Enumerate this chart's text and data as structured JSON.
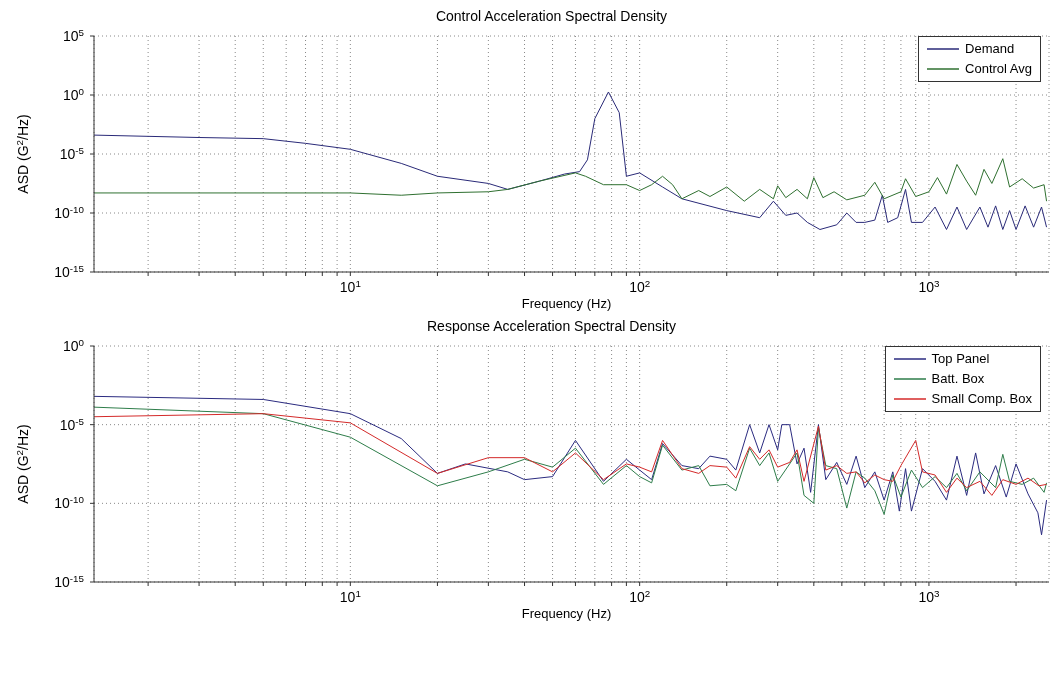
{
  "chart_data": [
    {
      "type": "line",
      "title": "Control Acceleration Spectral Density",
      "xlabel": "Frequency (Hz)",
      "ylabel": "ASD (G$^{2}$/Hz)",
      "log": "xy",
      "grid": true,
      "legend": "top right",
      "xlim": [
        1.3,
        2600
      ],
      "ylim": [
        1e-15,
        100000
      ],
      "xticks": [
        {
          "value": 2,
          "label": null
        },
        {
          "value": 3,
          "label": null
        },
        {
          "value": 4,
          "label": null
        },
        {
          "value": 5,
          "label": null
        },
        {
          "value": 6,
          "label": null
        },
        {
          "value": 7,
          "label": null
        },
        {
          "value": 8,
          "label": null
        },
        {
          "value": 9,
          "label": null
        },
        {
          "value": 10,
          "label": "10$^{1}$"
        },
        {
          "value": 20,
          "label": null
        },
        {
          "value": 30,
          "label": null
        },
        {
          "value": 40,
          "label": null
        },
        {
          "value": 50,
          "label": null
        },
        {
          "value": 60,
          "label": null
        },
        {
          "value": 70,
          "label": null
        },
        {
          "value": 80,
          "label": null
        },
        {
          "value": 90,
          "label": null
        },
        {
          "value": 100,
          "label": "10$^{2}$"
        },
        {
          "value": 200,
          "label": null
        },
        {
          "value": 300,
          "label": null
        },
        {
          "value": 400,
          "label": null
        },
        {
          "value": 500,
          "label": null
        },
        {
          "value": 600,
          "label": null
        },
        {
          "value": 700,
          "label": null
        },
        {
          "value": 800,
          "label": null
        },
        {
          "value": 900,
          "label": null
        },
        {
          "value": 1000,
          "label": "10$^{3}$"
        },
        {
          "value": 2000,
          "label": null
        }
      ],
      "yticks": [
        {
          "value": 1e-15,
          "label": "10$^{-15}$"
        },
        {
          "value": 1e-10,
          "label": "10$^{-10}$"
        },
        {
          "value": 1e-05,
          "label": "10$^{-5}$"
        },
        {
          "value": 1,
          "label": "10$^{0}$"
        },
        {
          "value": 100000,
          "label": "10$^{5}$"
        }
      ],
      "series": [
        {
          "name": "Demand",
          "color": "#2a2a78",
          "x": [
            1.3,
            3,
            5,
            7,
            10,
            15,
            20,
            30,
            35,
            45,
            55,
            62,
            66,
            70,
            78,
            85,
            90,
            100,
            120,
            140,
            200,
            260,
            290,
            320,
            350,
            380,
            420,
            480,
            520,
            560,
            600,
            650,
            690,
            720,
            780,
            830,
            870,
            950,
            1050,
            1150,
            1250,
            1350,
            1500,
            1600,
            1700,
            1800,
            1900,
            2000,
            2150,
            2300,
            2450,
            2550
          ],
          "values": [
            0.0004,
            0.00025,
            0.0002,
            8e-05,
            2.5e-05,
            1.6e-06,
            1.3e-07,
            3.2e-08,
            1e-08,
            5e-08,
            2e-07,
            3.2e-07,
            3.2e-06,
            0.01,
            1.8,
            0.032,
            1.3e-07,
            2.5e-07,
            1.6e-08,
            1.6e-09,
            1.6e-10,
            4e-11,
            1e-09,
            6.3e-11,
            1e-10,
            1.6e-11,
            4e-12,
            1e-11,
            1e-10,
            1.6e-11,
            1.6e-11,
            2.5e-11,
            3.2e-09,
            1.6e-11,
            4e-11,
            1e-08,
            1.6e-11,
            1.6e-11,
            3.2e-10,
            4e-12,
            3.2e-10,
            4e-12,
            3.2e-10,
            6.3e-12,
            4e-10,
            4e-12,
            1.6e-10,
            4e-12,
            4e-10,
            6.3e-12,
            3.2e-10,
            6.3e-12
          ]
        },
        {
          "name": "Control Avg",
          "color": "#2f7030",
          "x": [
            1.3,
            5,
            10,
            15,
            20,
            30,
            35,
            45,
            60,
            65,
            75,
            90,
            100,
            110,
            120,
            130,
            140,
            160,
            175,
            200,
            230,
            260,
            290,
            300,
            320,
            350,
            380,
            400,
            430,
            470,
            520,
            600,
            650,
            700,
            800,
            830,
            900,
            1000,
            1070,
            1150,
            1250,
            1350,
            1450,
            1550,
            1650,
            1800,
            1900,
            2100,
            2300,
            2500,
            2550
          ],
          "values": [
            5e-09,
            5e-09,
            5e-09,
            3.2e-09,
            5e-09,
            6.3e-09,
            1e-08,
            5e-08,
            2.5e-07,
            1.3e-07,
            2.5e-08,
            2.5e-08,
            8e-09,
            2.5e-08,
            1.3e-07,
            2.5e-08,
            1.6e-09,
            8e-09,
            2.5e-09,
            1.6e-08,
            1e-09,
            1e-08,
            1.6e-09,
            2e-08,
            2e-09,
            1e-08,
            1.6e-09,
            1e-07,
            2e-09,
            6.3e-09,
            1.3e-09,
            3.2e-09,
            4e-08,
            1.6e-09,
            6.3e-09,
            8e-08,
            2.5e-09,
            6.3e-09,
            1e-07,
            4e-09,
            1.3e-06,
            5e-08,
            3.2e-09,
            5e-07,
            3.2e-08,
            4e-06,
            1.6e-08,
            8e-08,
            1.3e-08,
            2.5e-08,
            1e-09
          ]
        }
      ]
    },
    {
      "type": "line",
      "title": "Response Acceleration Spectral Density",
      "xlabel": "Frequency (Hz)",
      "ylabel": "ASD (G$^{2}$/Hz)",
      "log": "xy",
      "grid": true,
      "legend": "top right",
      "xlim": [
        1.3,
        2600
      ],
      "ylim": [
        1e-15,
        1
      ],
      "xticks": [
        {
          "value": 2,
          "label": null
        },
        {
          "value": 3,
          "label": null
        },
        {
          "value": 4,
          "label": null
        },
        {
          "value": 5,
          "label": null
        },
        {
          "value": 6,
          "label": null
        },
        {
          "value": 7,
          "label": null
        },
        {
          "value": 8,
          "label": null
        },
        {
          "value": 9,
          "label": null
        },
        {
          "value": 10,
          "label": "10$^{1}$"
        },
        {
          "value": 20,
          "label": null
        },
        {
          "value": 30,
          "label": null
        },
        {
          "value": 40,
          "label": null
        },
        {
          "value": 50,
          "label": null
        },
        {
          "value": 60,
          "label": null
        },
        {
          "value": 70,
          "label": null
        },
        {
          "value": 80,
          "label": null
        },
        {
          "value": 90,
          "label": null
        },
        {
          "value": 100,
          "label": "10$^{2}$"
        },
        {
          "value": 200,
          "label": null
        },
        {
          "value": 300,
          "label": null
        },
        {
          "value": 400,
          "label": null
        },
        {
          "value": 500,
          "label": null
        },
        {
          "value": 600,
          "label": null
        },
        {
          "value": 700,
          "label": null
        },
        {
          "value": 800,
          "label": null
        },
        {
          "value": 900,
          "label": null
        },
        {
          "value": 1000,
          "label": "10$^{3}$"
        },
        {
          "value": 2000,
          "label": null
        }
      ],
      "yticks": [
        {
          "value": 1e-15,
          "label": "10$^{-15}$"
        },
        {
          "value": 1e-10,
          "label": "10$^{-10}$"
        },
        {
          "value": 1e-05,
          "label": "10$^{-5}$"
        },
        {
          "value": 1,
          "label": "10$^{0}$"
        }
      ],
      "series": [
        {
          "name": "Top Panel",
          "color": "#2b2b80",
          "x": [
            1.3,
            5,
            10,
            15,
            20,
            25,
            35,
            40,
            50,
            60,
            75,
            90,
            100,
            110,
            120,
            140,
            160,
            175,
            200,
            215,
            240,
            260,
            280,
            300,
            310,
            330,
            350,
            370,
            390,
            415,
            440,
            480,
            520,
            560,
            600,
            650,
            700,
            750,
            790,
            830,
            870,
            950,
            1050,
            1150,
            1250,
            1350,
            1450,
            1550,
            1700,
            1850,
            2000,
            2200,
            2380,
            2450,
            2550
          ],
          "values": [
            0.00063,
            0.0004,
            5e-05,
            1.3e-06,
            8e-09,
            3.2e-08,
            1e-08,
            3.2e-09,
            5e-09,
            1e-06,
            2.5e-09,
            6.3e-08,
            1.3e-08,
            3.2e-09,
            6.3e-07,
            2.5e-08,
            1.6e-08,
            1e-07,
            6.3e-08,
            1.3e-08,
            1e-05,
            1.6e-07,
            1e-05,
            2.5e-07,
            1e-05,
            1e-05,
            3.2e-08,
            3.2e-07,
            5e-10,
            1e-05,
            3.2e-09,
            4e-08,
            1.6e-09,
            1e-07,
            1e-09,
            1e-08,
            1.6e-10,
            1e-08,
            3.2e-11,
            1.6e-08,
            3.2e-11,
            1.6e-08,
            2.5e-09,
            1.6e-10,
            1e-07,
            3.2e-10,
            1.6e-07,
            4e-10,
            2.5e-08,
            2.5e-10,
            3.2e-08,
            4e-10,
            2.5e-11,
            1e-12,
            1.6e-10
          ]
        },
        {
          "name": "Batt. Box",
          "color": "#2e7d4a",
          "x": [
            1.3,
            5,
            10,
            20,
            30,
            40,
            50,
            60,
            75,
            90,
            100,
            110,
            120,
            140,
            160,
            175,
            200,
            215,
            240,
            260,
            280,
            300,
            330,
            350,
            370,
            400,
            415,
            440,
            480,
            520,
            560,
            600,
            650,
            700,
            750,
            800,
            870,
            950,
            1050,
            1150,
            1250,
            1350,
            1500,
            1700,
            1800,
            1900,
            2100,
            2300,
            2500,
            2550
          ],
          "values": [
            0.00013,
            5e-05,
            1.6e-06,
            1.3e-09,
            1e-08,
            6.3e-08,
            2e-08,
            3.2e-07,
            1.6e-09,
            2.5e-08,
            5e-09,
            2e-09,
            5e-07,
            1.3e-08,
            2.5e-08,
            1.3e-09,
            1.6e-09,
            6.3e-10,
            3.2e-07,
            2.5e-08,
            1.6e-07,
            2.5e-09,
            3.2e-08,
            1.6e-07,
            3.2e-10,
            1e-10,
            6.3e-06,
            2.5e-08,
            1.6e-08,
            5e-11,
            1e-08,
            4e-09,
            6.3e-10,
            2e-11,
            6.3e-09,
            2.5e-10,
            1.3e-08,
            1e-09,
            5e-09,
            1e-09,
            8e-09,
            6.3e-10,
            1e-08,
            1e-09,
            1.3e-07,
            2.5e-09,
            1.6e-09,
            4e-09,
            5e-10,
            2e-09
          ]
        },
        {
          "name": "Small Comp. Box",
          "color": "#d42a2a",
          "x": [
            1.3,
            5,
            10,
            20,
            30,
            40,
            50,
            60,
            75,
            90,
            100,
            110,
            120,
            140,
            160,
            175,
            200,
            215,
            240,
            260,
            280,
            300,
            330,
            350,
            370,
            415,
            440,
            480,
            520,
            560,
            600,
            650,
            700,
            750,
            800,
            900,
            950,
            1050,
            1150,
            1250,
            1350,
            1500,
            1650,
            1800,
            2000,
            2200,
            2400,
            2550
          ],
          "values": [
            3.2e-05,
            5e-05,
            1.3e-05,
            8e-09,
            8e-08,
            8e-08,
            1e-08,
            1.6e-07,
            3.2e-09,
            3.2e-08,
            2e-08,
            1e-08,
            1e-06,
            1.6e-08,
            8e-09,
            2.5e-08,
            2e-08,
            4e-09,
            4e-07,
            6.3e-08,
            2.5e-07,
            2e-08,
            4e-08,
            2.5e-07,
            2.5e-09,
            8e-06,
            1.3e-08,
            2.5e-08,
            8e-09,
            1e-08,
            2e-09,
            6.3e-09,
            3.2e-09,
            2.5e-09,
            2.5e-08,
            1e-06,
            1e-08,
            6.3e-09,
            5e-10,
            4e-09,
            1e-09,
            2.5e-09,
            3.2e-10,
            3.2e-09,
            1.6e-09,
            4e-09,
            1.3e-09,
            1.6e-09
          ]
        }
      ]
    }
  ]
}
